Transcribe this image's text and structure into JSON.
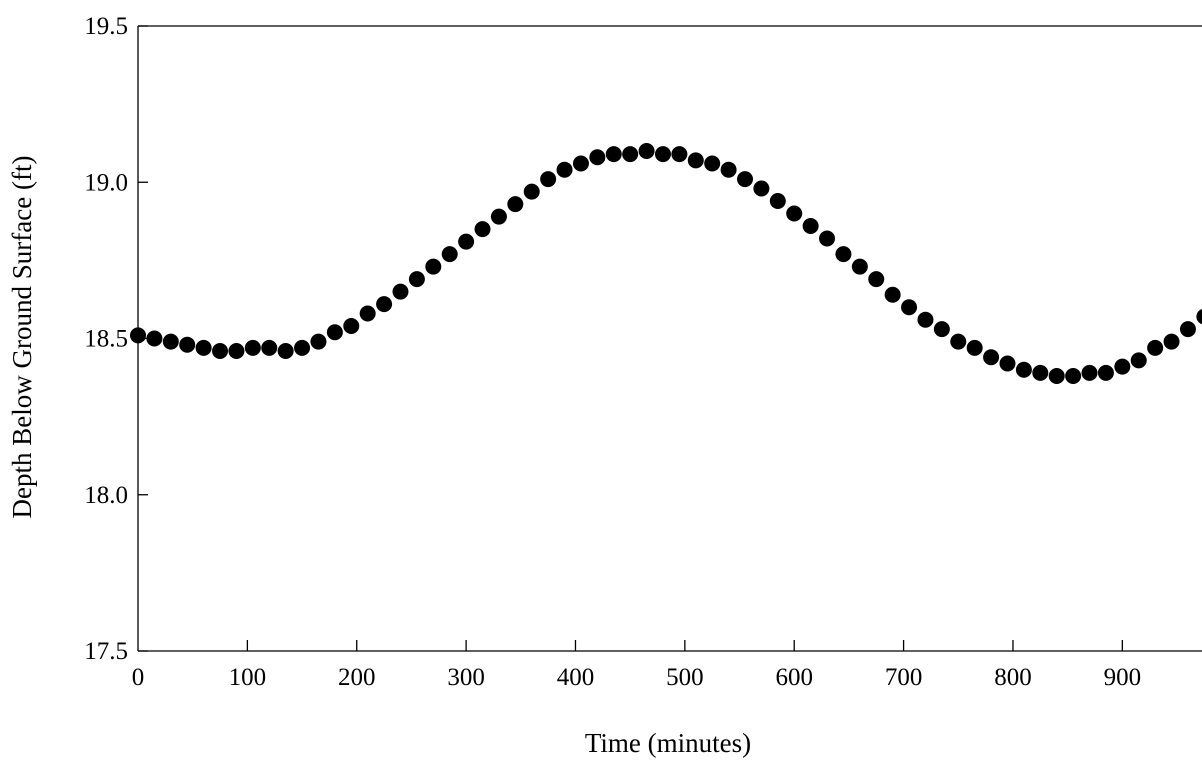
{
  "colors": {
    "background": "#ffffff",
    "axis": "#000000",
    "marker": "#000000"
  },
  "chart_data": {
    "type": "scatter",
    "title": "",
    "xlabel": "Time (minutes)",
    "ylabel": "Depth Below Ground Surface (ft)",
    "xlim": [
      0,
      980
    ],
    "ylim": [
      17.5,
      19.5
    ],
    "xticks": [
      "0",
      "100",
      "200",
      "300",
      "400",
      "500",
      "600",
      "700",
      "800",
      "900"
    ],
    "xtick_values": [
      0,
      100,
      200,
      300,
      400,
      500,
      600,
      700,
      800,
      900
    ],
    "yticks": [
      "19.5",
      "19.0",
      "18.5",
      "18.0",
      "17.5"
    ],
    "ytick_values": [
      19.5,
      19.0,
      18.5,
      18.0,
      17.5
    ],
    "grid": false,
    "legend": "none",
    "marker": "filled-circle",
    "series": [
      {
        "x": [
          0,
          15,
          30,
          45,
          60,
          75,
          90,
          105,
          120,
          135,
          150,
          165,
          180,
          195,
          210,
          225,
          240,
          255,
          270,
          285,
          300,
          315,
          330,
          345,
          360,
          375,
          390,
          405,
          420,
          435,
          450,
          465,
          480,
          495,
          510,
          525,
          540,
          555,
          570,
          585,
          600,
          615,
          630,
          645,
          660,
          675,
          690,
          705,
          720,
          735,
          750,
          765,
          780,
          795,
          810,
          825,
          840,
          855,
          870,
          885,
          900,
          915,
          930,
          945,
          960,
          975
        ],
        "y": [
          18.51,
          18.5,
          18.49,
          18.48,
          18.47,
          18.46,
          18.46,
          18.47,
          18.47,
          18.46,
          18.47,
          18.49,
          18.52,
          18.54,
          18.58,
          18.61,
          18.65,
          18.69,
          18.73,
          18.77,
          18.81,
          18.85,
          18.89,
          18.93,
          18.97,
          19.01,
          19.04,
          19.06,
          19.08,
          19.09,
          19.09,
          19.1,
          19.09,
          19.09,
          19.07,
          19.06,
          19.04,
          19.01,
          18.98,
          18.94,
          18.9,
          18.86,
          18.82,
          18.77,
          18.73,
          18.69,
          18.64,
          18.6,
          18.56,
          18.53,
          18.49,
          18.47,
          18.44,
          18.42,
          18.4,
          18.39,
          18.38,
          18.38,
          18.39,
          18.39,
          18.41,
          18.43,
          18.47,
          18.49,
          18.53,
          18.57
        ]
      }
    ]
  }
}
